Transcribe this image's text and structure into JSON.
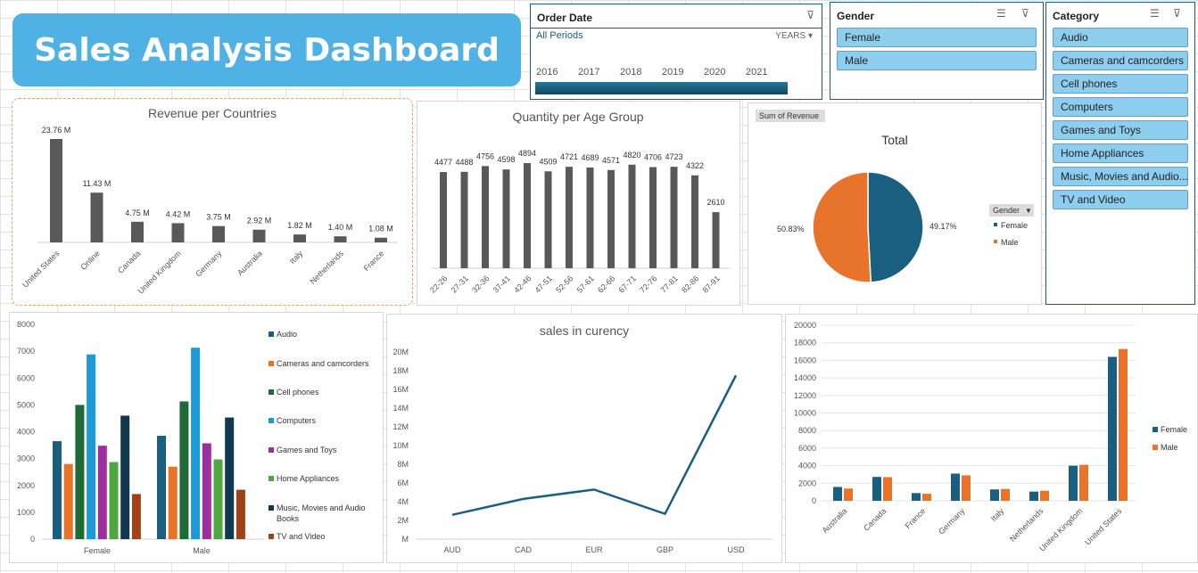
{
  "dashboard_title": "Sales Analysis Dashboard",
  "order_date_slicer": {
    "title": "Order Date",
    "period_label": "All Periods",
    "unit_label": "YEARS",
    "years": [
      "2016",
      "2017",
      "2018",
      "2019",
      "2020",
      "2021"
    ]
  },
  "gender_slicer": {
    "title": "Gender",
    "items": [
      "Female",
      "Male"
    ]
  },
  "category_slicer": {
    "title": "Category",
    "items": [
      "Audio",
      "Cameras and camcorders",
      "Cell phones",
      "Computers",
      "Games and Toys",
      "Home Appliances",
      "Music, Movies and Audio...",
      "TV and Video"
    ]
  },
  "colors": {
    "gray_bar": "#595959",
    "blue": "#1b5f80",
    "orange": "#e8742b",
    "slicer_btn": "#8dcdee",
    "title_bg": "#4fb1e4"
  },
  "chart_data": [
    {
      "type": "bar",
      "title": "Revenue per Countries",
      "categories": [
        "United States",
        "Online",
        "Canada",
        "United Kingdom",
        "Germany",
        "Australia",
        "Italy",
        "Netherlands",
        "France"
      ],
      "values": [
        23.76,
        11.43,
        4.75,
        4.42,
        3.75,
        2.92,
        1.82,
        1.4,
        1.08
      ],
      "data_labels": [
        "23.76 M",
        "11.43 M",
        "4.75 M",
        "4.42 M",
        "3.75 M",
        "2.92 M",
        "1.82 M",
        "1.40 M",
        "1.08 M"
      ]
    },
    {
      "type": "bar",
      "title": "Quantity per Age Group",
      "categories": [
        "22-26",
        "27-31",
        "32-36",
        "37-41",
        "42-46",
        "47-51",
        "52-56",
        "57-61",
        "62-66",
        "67-71",
        "72-76",
        "77-81",
        "82-86",
        "87-91"
      ],
      "values": [
        4477,
        4488,
        4756,
        4598,
        4894,
        4509,
        4721,
        4689,
        4571,
        4820,
        4706,
        4723,
        4322,
        2610
      ]
    },
    {
      "type": "pie",
      "title": "Total",
      "field_button": "Sum of Revenue",
      "legend_title": "Gender",
      "slices": [
        {
          "name": "Female",
          "value": 49.17,
          "label": "49.17%"
        },
        {
          "name": "Male",
          "value": 50.83,
          "label": "50.83%"
        }
      ]
    },
    {
      "type": "bar",
      "categories": [
        "Female",
        "Male"
      ],
      "ylim": [
        0,
        8000
      ],
      "y_ticks": [
        "0",
        "1000",
        "2000",
        "3000",
        "4000",
        "5000",
        "6000",
        "7000",
        "8000"
      ],
      "series": [
        {
          "name": "Audio",
          "color": "#1b5f80",
          "values": [
            3650,
            3850
          ]
        },
        {
          "name": "Cameras and camcorders",
          "color": "#e8742b",
          "values": [
            2800,
            2700
          ]
        },
        {
          "name": "Cell phones",
          "color": "#1f6b37",
          "values": [
            5000,
            5130
          ]
        },
        {
          "name": "Computers",
          "color": "#1b9ad6",
          "values": [
            6880,
            7130
          ]
        },
        {
          "name": "Games and Toys",
          "color": "#9b2f9e",
          "values": [
            3480,
            3570
          ]
        },
        {
          "name": "Home Appliances",
          "color": "#4ea83f",
          "values": [
            2870,
            2970
          ]
        },
        {
          "name": "Music, Movies and Audio Books",
          "color": "#10394f",
          "values": [
            4600,
            4530
          ]
        },
        {
          "name": "TV and Video",
          "color": "#a04218",
          "values": [
            1680,
            1840
          ]
        }
      ]
    },
    {
      "type": "line",
      "title": "sales in curency",
      "categories": [
        "AUD",
        "CAD",
        "EUR",
        "GBP",
        "USD"
      ],
      "values": [
        2.6,
        4.3,
        5.3,
        2.7,
        17.5
      ],
      "ylim": [
        0,
        20
      ],
      "y_ticks": [
        "M",
        "2M",
        "4M",
        "6M",
        "8M",
        "10M",
        "12M",
        "14M",
        "16M",
        "18M",
        "20M"
      ]
    },
    {
      "type": "bar",
      "categories": [
        "Australia",
        "Canada",
        "France",
        "Germany",
        "Italy",
        "Netherlands",
        "United Kingdom",
        "United States"
      ],
      "ylim": [
        0,
        20000
      ],
      "y_ticks": [
        "0",
        "2000",
        "4000",
        "6000",
        "8000",
        "10000",
        "12000",
        "14000",
        "16000",
        "18000",
        "20000"
      ],
      "series": [
        {
          "name": "Female",
          "color": "#1b5f80",
          "values": [
            1580,
            2720,
            880,
            3100,
            1300,
            1050,
            4000,
            16400
          ]
        },
        {
          "name": "Male",
          "color": "#e8742b",
          "values": [
            1400,
            2700,
            800,
            2900,
            1350,
            1150,
            4100,
            17300
          ]
        }
      ]
    }
  ]
}
